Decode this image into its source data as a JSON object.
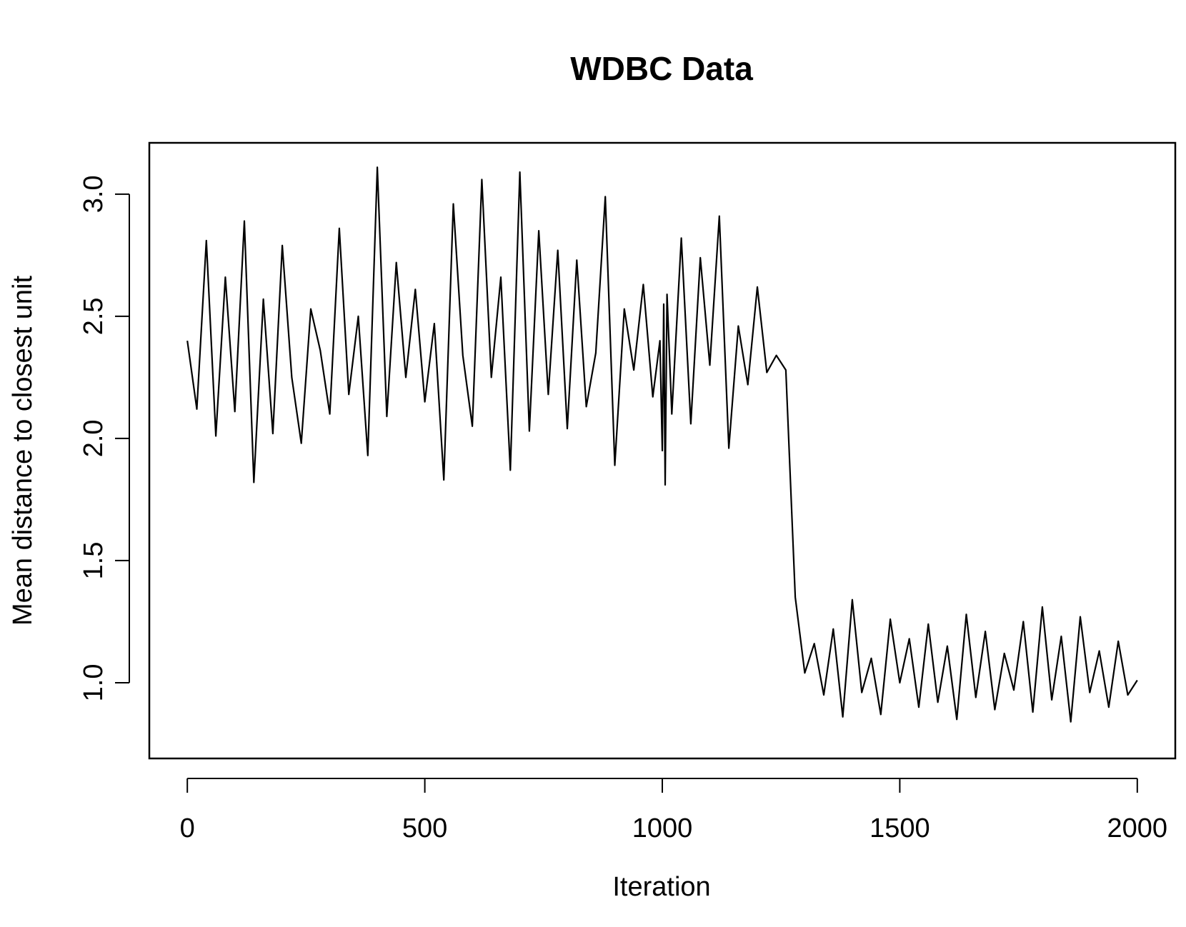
{
  "chart_data": {
    "type": "line",
    "title": "WDBC Data",
    "xlabel": "Iteration",
    "ylabel": "Mean distance to closest unit",
    "xlim": [
      -80,
      2080
    ],
    "ylim": [
      0.69,
      3.21
    ],
    "x_ticks": [
      0,
      500,
      1000,
      1500,
      2000
    ],
    "x_tick_labels": [
      "0",
      "500",
      "1000",
      "1500",
      "2000"
    ],
    "y_ticks": [
      1.0,
      1.5,
      2.0,
      2.5,
      3.0
    ],
    "y_tick_labels": [
      "1.0",
      "1.5",
      "2.0",
      "2.5",
      "3.0"
    ],
    "grid": false,
    "legend": "none",
    "line_color": "#000000",
    "series": [
      {
        "x": [
          0,
          20,
          40,
          60,
          80,
          100,
          120,
          140,
          160,
          180,
          200,
          220,
          240,
          260,
          280,
          300,
          320,
          340,
          360,
          380,
          400,
          420,
          440,
          460,
          480,
          500,
          520,
          540,
          560,
          580,
          600,
          620,
          640,
          660,
          680,
          700,
          720,
          740,
          760,
          780,
          800,
          820,
          840,
          860,
          880,
          900,
          920,
          940,
          960,
          980,
          995,
          1000,
          1003,
          1006,
          1010,
          1020,
          1040,
          1060,
          1080,
          1100,
          1120,
          1140,
          1160,
          1180,
          1200,
          1220,
          1240,
          1260,
          1280,
          1300,
          1320,
          1340,
          1360,
          1380,
          1400,
          1420,
          1440,
          1460,
          1480,
          1500,
          1520,
          1540,
          1560,
          1580,
          1600,
          1620,
          1640,
          1660,
          1680,
          1700,
          1720,
          1740,
          1760,
          1780,
          1800,
          1820,
          1840,
          1860,
          1880,
          1900,
          1920,
          1940,
          1960,
          1980,
          2000
        ],
        "y": [
          2.4,
          2.12,
          2.81,
          2.01,
          2.66,
          2.11,
          2.89,
          1.82,
          2.57,
          2.02,
          2.79,
          2.25,
          1.98,
          2.53,
          2.36,
          2.1,
          2.86,
          2.18,
          2.5,
          1.93,
          3.11,
          2.09,
          2.72,
          2.25,
          2.61,
          2.15,
          2.47,
          1.83,
          2.96,
          2.34,
          2.05,
          3.06,
          2.25,
          2.66,
          1.87,
          3.09,
          2.03,
          2.85,
          2.18,
          2.77,
          2.04,
          2.73,
          2.13,
          2.35,
          2.99,
          1.89,
          2.53,
          2.28,
          2.63,
          2.17,
          2.4,
          1.95,
          2.55,
          1.81,
          2.59,
          2.1,
          2.82,
          2.06,
          2.74,
          2.3,
          2.91,
          1.96,
          2.46,
          2.22,
          2.62,
          2.27,
          2.34,
          2.28,
          1.35,
          1.04,
          1.16,
          0.95,
          1.22,
          0.86,
          1.34,
          0.96,
          1.1,
          0.87,
          1.26,
          1.0,
          1.18,
          0.9,
          1.24,
          0.92,
          1.15,
          0.85,
          1.28,
          0.94,
          1.21,
          0.89,
          1.12,
          0.97,
          1.25,
          0.88,
          1.31,
          0.93,
          1.19,
          0.84,
          1.27,
          0.96,
          1.13,
          0.9,
          1.17,
          0.95,
          1.01
        ],
        "note_points": []
      }
    ]
  }
}
